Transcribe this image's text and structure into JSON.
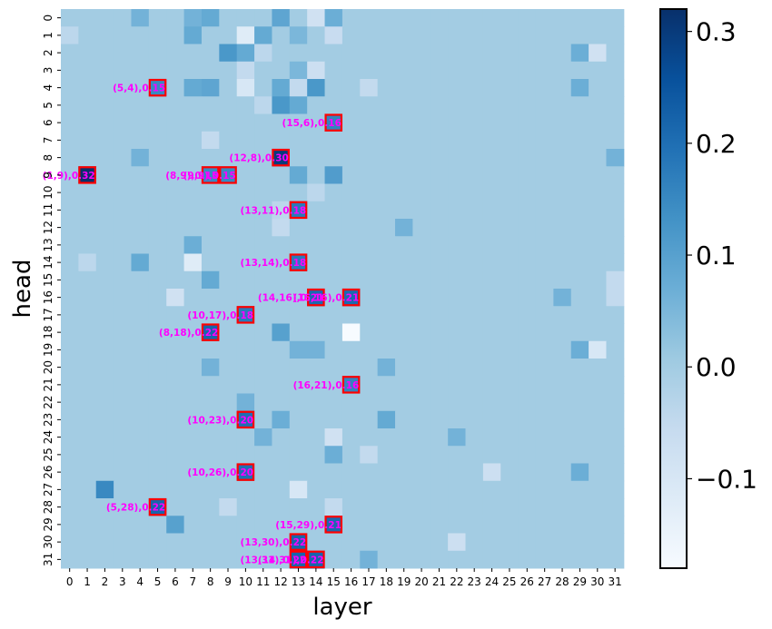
{
  "chart_data": {
    "type": "heatmap",
    "xlabel": "layer",
    "ylabel": "head",
    "x_ticks": [
      "0",
      "1",
      "2",
      "3",
      "4",
      "5",
      "6",
      "7",
      "8",
      "9",
      "10",
      "11",
      "12",
      "13",
      "14",
      "15",
      "16",
      "17",
      "18",
      "19",
      "20",
      "21",
      "22",
      "23",
      "24",
      "25",
      "26",
      "27",
      "28",
      "29",
      "30",
      "31"
    ],
    "y_ticks": [
      "0",
      "1",
      "2",
      "3",
      "4",
      "5",
      "6",
      "7",
      "8",
      "9",
      "10",
      "11",
      "12",
      "13",
      "14",
      "15",
      "16",
      "17",
      "18",
      "19",
      "20",
      "21",
      "22",
      "23",
      "24",
      "25",
      "26",
      "27",
      "28",
      "29",
      "30",
      "31"
    ],
    "colorbar": {
      "vmin": -0.18,
      "vmax": 0.32,
      "ticks": [
        -0.1,
        0.0,
        0.1,
        0.2,
        0.3
      ],
      "tick_labels": [
        "−0.1",
        "0.0",
        "0.1",
        "0.2",
        "0.3"
      ],
      "colormap": "Blues",
      "low_color": "#f7fbff",
      "high_color": "#08306b"
    },
    "background_value": 0.0,
    "cells": [
      {
        "layer": 4,
        "head": 0,
        "value": 0.06
      },
      {
        "layer": 7,
        "head": 0,
        "value": 0.06
      },
      {
        "layer": 8,
        "head": 0,
        "value": 0.08
      },
      {
        "layer": 12,
        "head": 0,
        "value": 0.09
      },
      {
        "layer": 14,
        "head": 0,
        "value": -0.08
      },
      {
        "layer": 15,
        "head": 0,
        "value": 0.07
      },
      {
        "layer": 0,
        "head": 1,
        "value": -0.04
      },
      {
        "layer": 7,
        "head": 1,
        "value": 0.08
      },
      {
        "layer": 10,
        "head": 1,
        "value": -0.12
      },
      {
        "layer": 11,
        "head": 1,
        "value": 0.08
      },
      {
        "layer": 13,
        "head": 1,
        "value": 0.05
      },
      {
        "layer": 15,
        "head": 1,
        "value": -0.06
      },
      {
        "layer": 9,
        "head": 2,
        "value": 0.12
      },
      {
        "layer": 10,
        "head": 2,
        "value": 0.08
      },
      {
        "layer": 11,
        "head": 2,
        "value": -0.04
      },
      {
        "layer": 29,
        "head": 2,
        "value": 0.07
      },
      {
        "layer": 30,
        "head": 2,
        "value": -0.08
      },
      {
        "layer": 10,
        "head": 3,
        "value": -0.05
      },
      {
        "layer": 13,
        "head": 3,
        "value": 0.05
      },
      {
        "layer": 14,
        "head": 3,
        "value": -0.07
      },
      {
        "layer": 5,
        "head": 4,
        "value": 0.15
      },
      {
        "layer": 7,
        "head": 4,
        "value": 0.08
      },
      {
        "layer": 8,
        "head": 4,
        "value": 0.09
      },
      {
        "layer": 10,
        "head": 4,
        "value": -0.1
      },
      {
        "layer": 12,
        "head": 4,
        "value": 0.08
      },
      {
        "layer": 13,
        "head": 4,
        "value": -0.05
      },
      {
        "layer": 14,
        "head": 4,
        "value": 0.12
      },
      {
        "layer": 17,
        "head": 4,
        "value": -0.05
      },
      {
        "layer": 29,
        "head": 4,
        "value": 0.07
      },
      {
        "layer": 11,
        "head": 5,
        "value": -0.04
      },
      {
        "layer": 12,
        "head": 5,
        "value": 0.12
      },
      {
        "layer": 13,
        "head": 5,
        "value": 0.08
      },
      {
        "layer": 15,
        "head": 6,
        "value": 0.16
      },
      {
        "layer": 8,
        "head": 7,
        "value": -0.05
      },
      {
        "layer": 4,
        "head": 8,
        "value": 0.06
      },
      {
        "layer": 12,
        "head": 8,
        "value": 0.3
      },
      {
        "layer": 31,
        "head": 8,
        "value": 0.06
      },
      {
        "layer": 1,
        "head": 9,
        "value": 0.32
      },
      {
        "layer": 8,
        "head": 9,
        "value": 0.15
      },
      {
        "layer": 9,
        "head": 9,
        "value": 0.15
      },
      {
        "layer": 13,
        "head": 9,
        "value": 0.08
      },
      {
        "layer": 15,
        "head": 9,
        "value": 0.11
      },
      {
        "layer": 14,
        "head": 10,
        "value": -0.04
      },
      {
        "layer": 13,
        "head": 11,
        "value": 0.18
      },
      {
        "layer": 12,
        "head": 11,
        "value": -0.04
      },
      {
        "layer": 12,
        "head": 12,
        "value": -0.05
      },
      {
        "layer": 19,
        "head": 12,
        "value": 0.06
      },
      {
        "layer": 7,
        "head": 13,
        "value": 0.07
      },
      {
        "layer": 4,
        "head": 14,
        "value": 0.08
      },
      {
        "layer": 7,
        "head": 14,
        "value": -0.12
      },
      {
        "layer": 13,
        "head": 14,
        "value": 0.18
      },
      {
        "layer": 1,
        "head": 14,
        "value": -0.04
      },
      {
        "layer": 8,
        "head": 15,
        "value": 0.08
      },
      {
        "layer": 31,
        "head": 15,
        "value": -0.05
      },
      {
        "layer": 6,
        "head": 16,
        "value": -0.08
      },
      {
        "layer": 14,
        "head": 16,
        "value": 0.21
      },
      {
        "layer": 16,
        "head": 16,
        "value": 0.21
      },
      {
        "layer": 28,
        "head": 16,
        "value": 0.06
      },
      {
        "layer": 31,
        "head": 16,
        "value": -0.05
      },
      {
        "layer": 10,
        "head": 17,
        "value": 0.18
      },
      {
        "layer": 8,
        "head": 18,
        "value": 0.22
      },
      {
        "layer": 12,
        "head": 18,
        "value": 0.1
      },
      {
        "layer": 16,
        "head": 18,
        "value": -0.18
      },
      {
        "layer": 13,
        "head": 19,
        "value": 0.06
      },
      {
        "layer": 14,
        "head": 19,
        "value": 0.06
      },
      {
        "layer": 29,
        "head": 19,
        "value": 0.07
      },
      {
        "layer": 30,
        "head": 19,
        "value": -0.1
      },
      {
        "layer": 8,
        "head": 20,
        "value": 0.06
      },
      {
        "layer": 18,
        "head": 20,
        "value": 0.06
      },
      {
        "layer": 16,
        "head": 21,
        "value": 0.16
      },
      {
        "layer": 10,
        "head": 22,
        "value": 0.06
      },
      {
        "layer": 10,
        "head": 23,
        "value": 0.2
      },
      {
        "layer": 12,
        "head": 23,
        "value": 0.07
      },
      {
        "layer": 18,
        "head": 23,
        "value": 0.08
      },
      {
        "layer": 11,
        "head": 24,
        "value": 0.06
      },
      {
        "layer": 15,
        "head": 24,
        "value": -0.08
      },
      {
        "layer": 22,
        "head": 24,
        "value": 0.06
      },
      {
        "layer": 15,
        "head": 25,
        "value": 0.07
      },
      {
        "layer": 17,
        "head": 25,
        "value": -0.05
      },
      {
        "layer": 10,
        "head": 26,
        "value": 0.2
      },
      {
        "layer": 24,
        "head": 26,
        "value": -0.07
      },
      {
        "layer": 29,
        "head": 26,
        "value": 0.07
      },
      {
        "layer": 2,
        "head": 27,
        "value": 0.15
      },
      {
        "layer": 13,
        "head": 27,
        "value": -0.1
      },
      {
        "layer": 5,
        "head": 28,
        "value": 0.22
      },
      {
        "layer": 9,
        "head": 28,
        "value": -0.05
      },
      {
        "layer": 15,
        "head": 28,
        "value": -0.05
      },
      {
        "layer": 6,
        "head": 29,
        "value": 0.1
      },
      {
        "layer": 15,
        "head": 29,
        "value": 0.21
      },
      {
        "layer": 13,
        "head": 30,
        "value": 0.22
      },
      {
        "layer": 22,
        "head": 30,
        "value": -0.07
      },
      {
        "layer": 13,
        "head": 31,
        "value": 0.22
      },
      {
        "layer": 14,
        "head": 31,
        "value": 0.22
      },
      {
        "layer": 17,
        "head": 31,
        "value": 0.06
      }
    ],
    "annotations": [
      {
        "layer": 5,
        "head": 4,
        "label": "(5,4),0.15"
      },
      {
        "layer": 15,
        "head": 6,
        "label": "(15,6),0.16"
      },
      {
        "layer": 12,
        "head": 8,
        "label": "(12,8),0.30"
      },
      {
        "layer": 1,
        "head": 9,
        "label": "(1,9),0.32"
      },
      {
        "layer": 8,
        "head": 9,
        "label": "(8,9),0.15"
      },
      {
        "layer": 9,
        "head": 9,
        "label": "(9,9),0.15"
      },
      {
        "layer": 13,
        "head": 11,
        "label": "(13,11),0.18"
      },
      {
        "layer": 13,
        "head": 14,
        "label": "(13,14),0.18"
      },
      {
        "layer": 14,
        "head": 16,
        "label": "(14,16),0.21"
      },
      {
        "layer": 16,
        "head": 16,
        "label": "(16,16),0.21"
      },
      {
        "layer": 10,
        "head": 17,
        "label": "(10,17),0.18"
      },
      {
        "layer": 8,
        "head": 18,
        "label": "(8,18),0.22"
      },
      {
        "layer": 16,
        "head": 21,
        "label": "(16,21),0.16"
      },
      {
        "layer": 10,
        "head": 23,
        "label": "(10,23),0.20"
      },
      {
        "layer": 10,
        "head": 26,
        "label": "(10,26),0.20"
      },
      {
        "layer": 5,
        "head": 28,
        "label": "(5,28),0.22"
      },
      {
        "layer": 15,
        "head": 29,
        "label": "(15,29),0.21"
      },
      {
        "layer": 13,
        "head": 30,
        "label": "(13,30),0.22"
      },
      {
        "layer": 13,
        "head": 31,
        "label": "(13,31),0.22"
      },
      {
        "layer": 14,
        "head": 31,
        "label": "(14,31),0.22"
      }
    ],
    "highlight_color": "#ff0000",
    "annotation_color": "#ff00ff"
  }
}
